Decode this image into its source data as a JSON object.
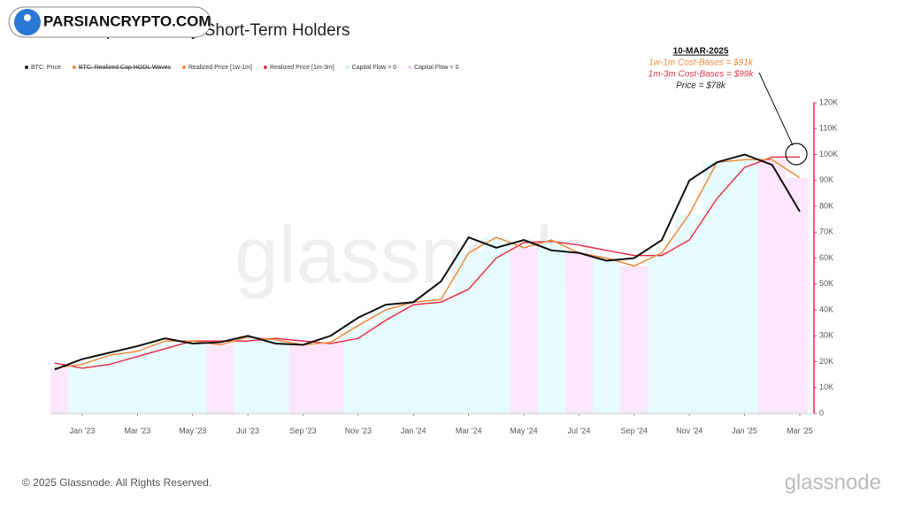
{
  "chart_data": {
    "type": "line",
    "title": "Bitcoin: Capital Flow by Short-Term Holders",
    "logo": "PARSIANCRYPTO.COM",
    "watermark": "glassnode",
    "footer": "© 2025 Glassnode. All Rights Reserved.",
    "brand": "glassnode",
    "annotation": {
      "date": "10-MAR-2025",
      "lines": [
        {
          "text": "1w-1m Cost-Bases = $91k",
          "color": "#f08a3c"
        },
        {
          "text": "1m-3m Cost-Bases = $99k",
          "color": "#e8344e"
        },
        {
          "text": "Price = $78k",
          "color": "#222"
        }
      ]
    },
    "x": [
      "2022-12",
      "2023-01",
      "2023-02",
      "2023-03",
      "2023-04",
      "2023-05",
      "2023-06",
      "2023-07",
      "2023-08",
      "2023-09",
      "2023-10",
      "2023-11",
      "2023-12",
      "2024-01",
      "2024-02",
      "2024-03",
      "2024-04",
      "2024-05",
      "2024-06",
      "2024-07",
      "2024-08",
      "2024-09",
      "2024-10",
      "2024-11",
      "2024-12",
      "2025-01",
      "2025-02",
      "2025-03"
    ],
    "xticks": [
      {
        "value": "2023-01",
        "label": "Jan '23"
      },
      {
        "value": "2023-03",
        "label": "Mar '23"
      },
      {
        "value": "2023-05",
        "label": "May '23"
      },
      {
        "value": "2023-07",
        "label": "Jul '23"
      },
      {
        "value": "2023-09",
        "label": "Sep '23"
      },
      {
        "value": "2023-11",
        "label": "Nov '23"
      },
      {
        "value": "2024-01",
        "label": "Jan '24"
      },
      {
        "value": "2024-03",
        "label": "Mar '24"
      },
      {
        "value": "2024-05",
        "label": "May '24"
      },
      {
        "value": "2024-07",
        "label": "Jul '24"
      },
      {
        "value": "2024-09",
        "label": "Sep '24"
      },
      {
        "value": "2024-11",
        "label": "Nov '24"
      },
      {
        "value": "2025-01",
        "label": "Jan '25"
      },
      {
        "value": "2025-03",
        "label": "Mar '25"
      }
    ],
    "ylim": [
      0,
      120000
    ],
    "yticks": [
      0,
      {
        "value": 10000,
        "label": "10K"
      },
      {
        "value": 20000,
        "label": "20K"
      },
      {
        "value": 30000,
        "label": "30K"
      },
      {
        "value": 40000,
        "label": "40K"
      },
      {
        "value": 50000,
        "label": "50K"
      },
      {
        "value": 60000,
        "label": "60K"
      },
      {
        "value": 70000,
        "label": "70K"
      },
      {
        "value": 80000,
        "label": "80K"
      },
      {
        "value": 90000,
        "label": "90K"
      },
      {
        "value": 100000,
        "label": "100K"
      },
      {
        "value": 110000,
        "label": "110K"
      },
      {
        "value": 120000,
        "label": "120K"
      }
    ],
    "disabled_series": [
      {
        "name": "BTC: Realized Cap HODL Waves",
        "color": "#f08a3c"
      }
    ],
    "series": [
      {
        "name": "BTC: Price",
        "color": "#111111",
        "values": [
          17000,
          21000,
          23500,
          26000,
          29000,
          27000,
          27500,
          30000,
          27000,
          26500,
          30000,
          37000,
          42000,
          43000,
          51000,
          68000,
          64000,
          67000,
          63000,
          62000,
          59000,
          60000,
          67000,
          90000,
          97000,
          100000,
          96000,
          78000
        ]
      },
      {
        "name": "Realized Price [1w-1m]",
        "color": "#f08a3c",
        "values": [
          17500,
          19000,
          22500,
          24000,
          28000,
          28000,
          26500,
          29500,
          28500,
          26500,
          27500,
          34000,
          40000,
          43000,
          44000,
          62000,
          68000,
          64000,
          67000,
          62000,
          60000,
          57000,
          62000,
          77000,
          97000,
          98000,
          98000,
          91000
        ]
      },
      {
        "name": "Realized Price [1m-3m]",
        "color": "#e8344e",
        "values": [
          19500,
          17500,
          19000,
          22000,
          25000,
          28000,
          28000,
          28000,
          29000,
          28000,
          27000,
          29000,
          36000,
          42000,
          43000,
          48000,
          60000,
          66000,
          66500,
          65000,
          63000,
          61000,
          61000,
          67000,
          83000,
          95000,
          99000,
          99000
        ]
      }
    ],
    "regimes": [
      {
        "name": "Capital Flow > 0",
        "color": "#e6fbfb"
      },
      {
        "name": "Capital Flow < 0",
        "color": "#fbe6fb"
      }
    ],
    "flow_regime": [
      1,
      0,
      0,
      0,
      0,
      0,
      1,
      0,
      0,
      1,
      1,
      0,
      0,
      0,
      0,
      0,
      0,
      1,
      0,
      1,
      0,
      1,
      0,
      0,
      0,
      0,
      1,
      1
    ]
  }
}
